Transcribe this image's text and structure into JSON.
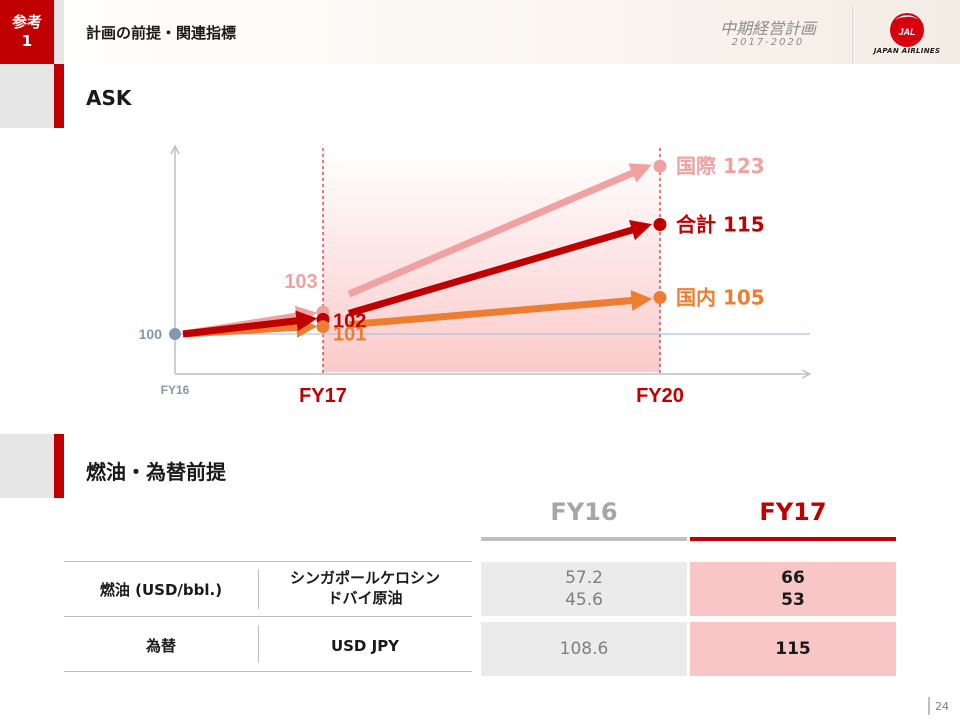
{
  "header": {
    "ref_line1": "参考",
    "ref_line2": "1",
    "title": "計画の前提・関連指標",
    "plan_name": "中期経営計画",
    "plan_years": "2017-2020",
    "logo_text": "JAPAN AIRLINES",
    "logo_mark": "JAL"
  },
  "ask_section": {
    "title": "ASK"
  },
  "fuel_section": {
    "title": "燃油・為替前提"
  },
  "chart_data": {
    "type": "line",
    "title": "ASK",
    "x": [
      "FY16",
      "FY17",
      "FY20"
    ],
    "x_tick_labels": {
      "FY16": "FY16",
      "FY17": "FY17",
      "FY20": "FY20"
    },
    "baseline": 100,
    "baseline_label": "100",
    "series": [
      {
        "name": "国際",
        "values": [
          100,
          103,
          123
        ],
        "color": "#f0a1a1",
        "labels": [
          "",
          "103",
          "国際 123"
        ]
      },
      {
        "name": "合計",
        "values": [
          100,
          102,
          115
        ],
        "color": "#c00000",
        "labels": [
          "",
          "102",
          "合計 115"
        ]
      },
      {
        "name": "国内",
        "values": [
          100,
          101,
          105
        ],
        "color": "#ed7d31",
        "labels": [
          "",
          "101",
          "国内 105"
        ]
      }
    ],
    "shaded_range": [
      "FY17",
      "FY20"
    ]
  },
  "table": {
    "col_fy16": "FY16",
    "col_fy17": "FY17",
    "rows": [
      {
        "label": "燃油 (USD/bbl.)",
        "sub_line1": "シンガポールケロシン",
        "sub_line2": "ドバイ原油",
        "fy16_line1": "57.2",
        "fy16_line2": "45.6",
        "fy17_line1": "66",
        "fy17_line2": "53"
      },
      {
        "label": "為替",
        "sub_line1": "USD JPY",
        "fy16_line1": "108.6",
        "fy17_line1": "115"
      }
    ]
  },
  "footer": {
    "page_number": "24"
  },
  "colors": {
    "accent": "#c00000",
    "international": "#f0a1a1",
    "domestic": "#ed7d31",
    "baseline": "#a6c8e0"
  }
}
